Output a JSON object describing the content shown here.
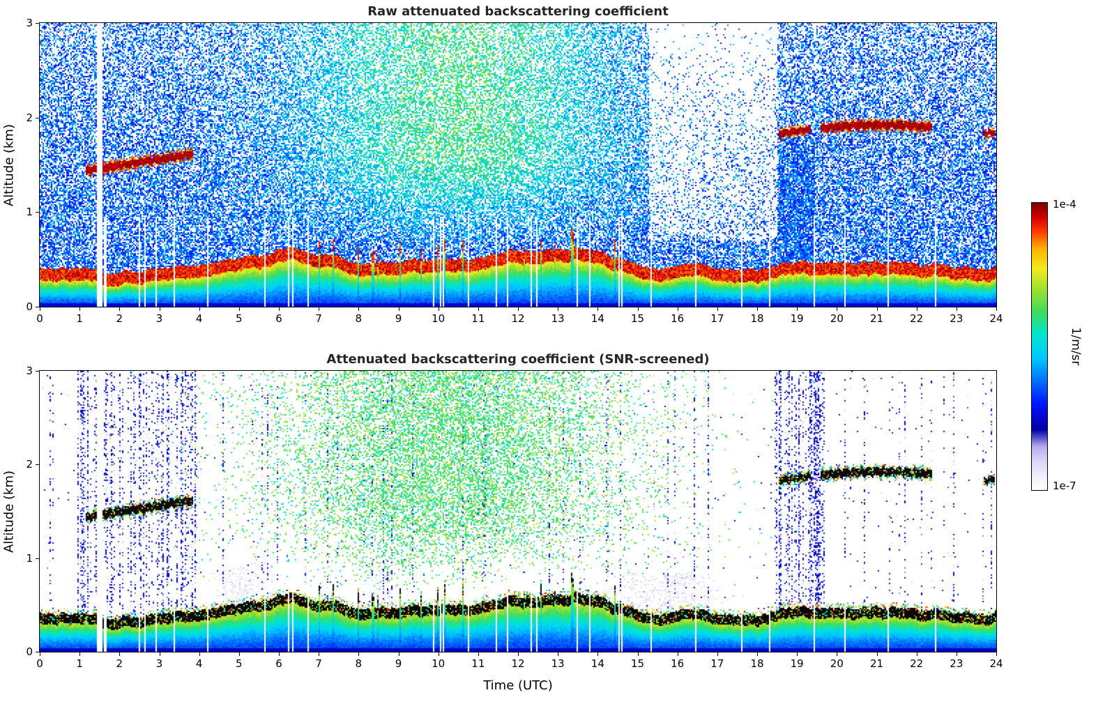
{
  "figure": {
    "background": "#ffffff"
  },
  "chart_data": [
    {
      "type": "heatmap",
      "title": "Raw attenuated backscattering coefficient",
      "xlabel": "",
      "ylabel": "Altitude (km)",
      "x_range": [
        0,
        24
      ],
      "y_range": [
        0,
        3
      ],
      "x_ticks": [
        0,
        1,
        2,
        3,
        4,
        5,
        6,
        7,
        8,
        9,
        10,
        11,
        12,
        13,
        14,
        15,
        16,
        17,
        18,
        19,
        20,
        21,
        22,
        23,
        24
      ],
      "y_ticks": [
        0,
        1,
        2,
        3
      ],
      "colorbar": {
        "label": "1/m/sr",
        "max_label": "1e-4",
        "min_label": "1e-7",
        "scale": "log",
        "stops": [
          [
            0,
            "#ffffff"
          ],
          [
            0.05,
            "#f0eefc"
          ],
          [
            0.1,
            "#dcd6f7"
          ],
          [
            0.15,
            "#b6aeee"
          ],
          [
            0.21,
            "#0000a8"
          ],
          [
            0.3,
            "#0014ff"
          ],
          [
            0.38,
            "#0072ff"
          ],
          [
            0.46,
            "#00c8ff"
          ],
          [
            0.54,
            "#00e6d2"
          ],
          [
            0.62,
            "#3edc5e"
          ],
          [
            0.7,
            "#a0e030"
          ],
          [
            0.77,
            "#f0ee20"
          ],
          [
            0.84,
            "#ffb400"
          ],
          [
            0.9,
            "#ff3c00"
          ],
          [
            0.95,
            "#d40000"
          ],
          [
            1,
            "#7f0000"
          ]
        ]
      },
      "features": {
        "data_gap_utc": [
          1.42,
          1.56
        ],
        "boundary_layer_top_km": [
          [
            0,
            0.42
          ],
          [
            2,
            0.38
          ],
          [
            4,
            0.4
          ],
          [
            5.5,
            0.52
          ],
          [
            6.3,
            0.6
          ],
          [
            7,
            0.52
          ],
          [
            8,
            0.5
          ],
          [
            9,
            0.52
          ],
          [
            10,
            0.5
          ],
          [
            11,
            0.55
          ],
          [
            12,
            0.6
          ],
          [
            13,
            0.62
          ],
          [
            13.8,
            0.64
          ],
          [
            14.5,
            0.52
          ],
          [
            15,
            0.45
          ],
          [
            16,
            0.42
          ],
          [
            17,
            0.41
          ],
          [
            18,
            0.41
          ],
          [
            19,
            0.46
          ],
          [
            20,
            0.43
          ],
          [
            21,
            0.45
          ],
          [
            22,
            0.43
          ],
          [
            23,
            0.45
          ],
          [
            24,
            0.43
          ]
        ],
        "cloud_layers": [
          {
            "t_start": 1.15,
            "t_end": 3.85,
            "alt_start": 1.44,
            "alt_end": 1.62,
            "thickness": 0.08
          },
          {
            "t_start": 18.55,
            "t_end": 19.35,
            "alt_start": 1.83,
            "alt_end": 1.88,
            "thickness": 0.07
          },
          {
            "t_start": 19.6,
            "t_end": 22.4,
            "alt_start": 1.89,
            "alt_end": 1.9,
            "thickness": 0.08,
            "arch": 0.03
          },
          {
            "t_start": 23.7,
            "t_end": 23.95,
            "alt_start": 1.83,
            "alt_end": 1.85,
            "thickness": 0.06
          }
        ],
        "daytime_solar_noise_utc": [
          4.5,
          16.5
        ],
        "description": "Dense blue/cyan background noise at all altitudes; green-yellow solar background noise aloft between ~05 and ~16 UTC; dark-red aerosol boundary layer below ~0.4-0.65 km with cyan/blue beneath it down to the surface; dark-red cloud layers near 1.5 km (01-04 UTC) and 1.9 km (18.6-22.4 UTC, plus a small patch near 23.8 UTC); white vertical data gap near 01:30 UTC."
      }
    },
    {
      "type": "heatmap",
      "title": "Attenuated backscattering coefficient (SNR-screened)",
      "xlabel": "Time (UTC)",
      "ylabel": "Altitude (km)",
      "x_range": [
        0,
        24
      ],
      "y_range": [
        0,
        3
      ],
      "x_ticks": [
        0,
        1,
        2,
        3,
        4,
        5,
        6,
        7,
        8,
        9,
        10,
        11,
        12,
        13,
        14,
        15,
        16,
        17,
        18,
        19,
        20,
        21,
        22,
        23,
        24
      ],
      "y_ticks": [
        0,
        1,
        2,
        3
      ],
      "colorbar": {
        "note": "shared with raw panel"
      },
      "features": {
        "note": "Same scene as the raw panel after SNR screening: low-SNR background removed (white); residual blue/dark-blue speckle concentrated in vertical stripes (~01-04 UTC and ~18.5-19.7 UTC); green solar noise remains aloft ~05-16 UTC; cloud layers near 1.5 km and 1.9 km and the boundary-layer top appear saturated (near-black); pale lavender plumes just above the boundary layer near ~05, ~08.6 and ~15-16.5 UTC."
      }
    }
  ]
}
